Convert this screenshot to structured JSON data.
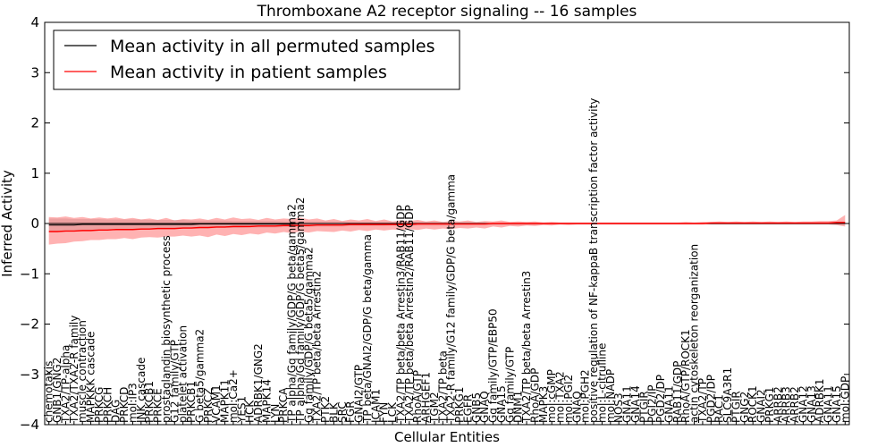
{
  "chart_data": {
    "type": "line",
    "title": "Thromboxane A2 receptor signaling -- 16 samples",
    "xlabel": "Cellular Entities",
    "ylabel": "Inferred Activity",
    "ylim": [
      -4,
      4
    ],
    "yticks": [
      -4,
      -3,
      -2,
      -1,
      0,
      1,
      2,
      3,
      4
    ],
    "ytick_labels": [
      "−4",
      "−3",
      "−2",
      "−1",
      "0",
      "1",
      "2",
      "3",
      "4"
    ],
    "grid": false,
    "legend": {
      "location": "top-left",
      "entries": [
        {
          "label": "Mean activity in all permuted samples",
          "color": "#000000"
        },
        {
          "label": "Mean activity in patient samples",
          "color": "#ff0000"
        }
      ]
    },
    "categories": [
      "chemotaxis",
      "GNB1/GNG2",
      "TXA2/TP-alpha",
      "TXA2/TXA2-R family",
      "muscle contraction",
      "MAPKKK cascade",
      "PRKCG",
      "PRKCH",
      "DAG",
      "PRKCD",
      "mol:IP3",
      "JNK cascade",
      "PRKCB1",
      "PRKCE",
      "prostaglandin biosynthetic process",
      "G12 family/GTP",
      "platelet activation",
      "PRKCB1",
      "G beta5/gamma2",
      "PRKCZ",
      "VCAM1",
      "MAPK11",
      "mol:Ca2+",
      "YES1",
      "HCK",
      "ADRBK1/GNG2",
      "MAPK14",
      "LYN",
      "PRKCA",
      "TP alpha/Gq family/GDP/G beta/gamma2",
      "TP alpha/Gq family/GDP/G beta5/gamma2",
      "Gq family/GDP/G beta5/gamma2",
      "TXA2/TP beta/beta Arrestin2",
      "PTK2",
      "BLK",
      "SRC",
      "FGR",
      "GNAI2/GTP",
      "TP beta/GNAI2/GDP/G beta/gamma",
      "ICAM1",
      "FYN",
      "LCK",
      "TXA2/TP beta/beta Arrestin3/RAB11/GDP",
      "TXA2/TP beta/beta Arrestin2/RAB11/GDP",
      "RhoA/GTP",
      "ARHGEF1",
      "TGM2",
      "TXA2/TP beta",
      "TXA2-R family/G12 family/GDP/G beta/gamma",
      "PRKG1",
      "EGFR",
      "GNB5",
      "GNAQ",
      "Gq family/GTP/EBP50",
      "GNA15",
      "Gq family/GTP",
      "DNM1",
      "TXA2/TP beta/beta Arrestin3",
      "RhoA/GDP",
      "MAPK3",
      "mol:cGMP",
      "mol:TXA2",
      "mol:PGI2",
      "GNAQ",
      "mol:PGH2",
      "positive regulation of NF-kappaB transcription factor activity",
      "mol:L-citrulline",
      "mol:NADP",
      "NOS3",
      "GNA11",
      "GNA14",
      "PTGIR",
      "PGI2/IP",
      "PGD2/DP",
      "GNA11",
      "RAB11/GDP",
      "RhoA/GTP/ROCK1",
      "actin cytoskeleton reorganization",
      "TXA2/TP",
      "PGD2/DP",
      "RAC1",
      "SLC9A3R1",
      "PTGIR",
      "GNG2",
      "ROCK1",
      "GNAI2",
      "PRKG1",
      "ARRB2",
      "ARRB3",
      "ARRB2",
      "GNA12",
      "GNA13",
      "ADRBK1",
      "GNA11",
      "GNA15",
      "mol:GDP"
    ],
    "series": [
      {
        "name": "Mean activity in all permuted samples",
        "color": "#000000",
        "values": [
          -0.03,
          -0.03,
          -0.03,
          -0.03,
          -0.02,
          -0.02,
          -0.02,
          -0.02,
          -0.02,
          -0.02,
          -0.02,
          -0.02,
          -0.02,
          -0.02,
          -0.02,
          -0.02,
          -0.02,
          -0.02,
          -0.01,
          -0.01,
          -0.01,
          -0.01,
          -0.01,
          -0.01,
          -0.01,
          -0.01,
          -0.01,
          -0.01,
          -0.01,
          -0.01,
          0,
          0,
          0,
          0,
          0,
          0,
          0,
          0,
          0,
          0,
          0,
          0,
          0,
          0,
          0,
          0,
          0,
          0,
          0,
          0,
          0,
          0,
          0,
          0,
          0,
          0,
          0,
          0,
          0,
          0,
          0,
          0,
          0,
          0,
          0,
          0,
          0,
          0,
          0,
          0,
          0,
          0,
          0,
          0,
          0,
          0,
          0,
          0,
          0,
          0,
          0,
          0,
          0,
          0,
          0,
          0,
          0,
          0,
          0,
          0,
          0,
          0,
          0,
          0,
          0,
          0
        ],
        "lower": [
          -0.15,
          -0.15,
          -0.14,
          -0.14,
          -0.14,
          -0.13,
          -0.13,
          -0.13,
          -0.12,
          -0.12,
          -0.12,
          -0.12,
          -0.11,
          -0.11,
          -0.11,
          -0.11,
          -0.1,
          -0.1,
          -0.1,
          -0.1,
          -0.09,
          -0.09,
          -0.09,
          -0.09,
          -0.08,
          -0.08,
          -0.08,
          -0.08,
          -0.07,
          -0.07,
          -0.07,
          -0.07,
          -0.06,
          -0.06,
          -0.06,
          -0.06,
          -0.05,
          -0.05,
          -0.05,
          -0.05,
          -0.05,
          -0.04,
          -0.04,
          -0.04,
          -0.04,
          -0.04,
          -0.04,
          -0.04,
          -0.04,
          -0.03,
          -0.03,
          -0.03,
          -0.03,
          -0.03,
          -0.03,
          -0.03,
          -0.03,
          -0.03,
          -0.03,
          -0.02,
          -0.02,
          -0.02,
          -0.02,
          -0.02,
          -0.02,
          -0.02,
          -0.02,
          -0.02,
          -0.02,
          -0.02,
          -0.02,
          -0.02,
          -0.02,
          -0.02,
          -0.02,
          -0.02,
          -0.02,
          -0.02,
          -0.02,
          -0.02,
          -0.02,
          -0.02,
          -0.02,
          -0.02,
          -0.02,
          -0.02,
          -0.02,
          -0.02,
          -0.02,
          -0.02,
          -0.02,
          -0.02,
          -0.02,
          -0.02,
          -0.02,
          -0.02
        ],
        "upper": [
          0.1,
          0.1,
          0.1,
          0.09,
          0.09,
          0.09,
          0.09,
          0.08,
          0.08,
          0.08,
          0.08,
          0.08,
          0.07,
          0.07,
          0.07,
          0.07,
          0.07,
          0.06,
          0.06,
          0.06,
          0.06,
          0.06,
          0.05,
          0.05,
          0.05,
          0.05,
          0.05,
          0.05,
          0.04,
          0.04,
          0.04,
          0.04,
          0.04,
          0.04,
          0.04,
          0.04,
          0.03,
          0.03,
          0.03,
          0.03,
          0.03,
          0.03,
          0.03,
          0.03,
          0.03,
          0.03,
          0.03,
          0.03,
          0.02,
          0.02,
          0.02,
          0.02,
          0.02,
          0.02,
          0.02,
          0.02,
          0.02,
          0.02,
          0.02,
          0.02,
          0.02,
          0.02,
          0.02,
          0.02,
          0.02,
          0.02,
          0.02,
          0.02,
          0.02,
          0.02,
          0.02,
          0.02,
          0.02,
          0.02,
          0.02,
          0.02,
          0.02,
          0.02,
          0.02,
          0.02,
          0.02,
          0.02,
          0.02,
          0.02,
          0.02,
          0.02,
          0.02,
          0.02,
          0.02,
          0.02,
          0.02,
          0.02,
          0.02,
          0.02,
          0.02,
          0.02
        ]
      },
      {
        "name": "Mean activity in patient samples",
        "color": "#ff0000",
        "values": [
          -0.16,
          -0.16,
          -0.15,
          -0.15,
          -0.14,
          -0.14,
          -0.13,
          -0.13,
          -0.12,
          -0.12,
          -0.12,
          -0.11,
          -0.11,
          -0.1,
          -0.1,
          -0.1,
          -0.09,
          -0.09,
          -0.08,
          -0.08,
          -0.07,
          -0.07,
          -0.06,
          -0.06,
          -0.06,
          -0.05,
          -0.05,
          -0.05,
          -0.04,
          -0.04,
          -0.04,
          -0.04,
          -0.03,
          -0.03,
          -0.03,
          -0.03,
          -0.02,
          -0.02,
          -0.02,
          -0.02,
          -0.02,
          -0.02,
          -0.02,
          -0.02,
          -0.01,
          -0.01,
          -0.01,
          -0.01,
          -0.01,
          -0.01,
          -0.01,
          -0.01,
          -0.01,
          0,
          0,
          0,
          0,
          0,
          0,
          0,
          0,
          0,
          0,
          0,
          0,
          0,
          0,
          0,
          0,
          0,
          0,
          0,
          0,
          0,
          0,
          0,
          0,
          0,
          0,
          0.01,
          0.01,
          0.01,
          0.01,
          0.01,
          0.01,
          0.01,
          0.01,
          0.01,
          0.01,
          0.01,
          0.01,
          0.01,
          0.01,
          0.01,
          0.02,
          0.02
        ],
        "lower": [
          -0.42,
          -0.4,
          -0.39,
          -0.36,
          -0.35,
          -0.33,
          -0.33,
          -0.31,
          -0.31,
          -0.29,
          -0.31,
          -0.28,
          -0.27,
          -0.28,
          -0.26,
          -0.26,
          -0.24,
          -0.26,
          -0.24,
          -0.27,
          -0.22,
          -0.25,
          -0.21,
          -0.23,
          -0.2,
          -0.22,
          -0.18,
          -0.2,
          -0.17,
          -0.19,
          -0.16,
          -0.18,
          -0.15,
          -0.16,
          -0.17,
          -0.14,
          -0.16,
          -0.13,
          -0.15,
          -0.12,
          -0.14,
          -0.12,
          -0.13,
          -0.11,
          -0.13,
          -0.1,
          -0.12,
          -0.1,
          -0.11,
          -0.09,
          -0.1,
          -0.08,
          -0.1,
          -0.06,
          -0.08,
          -0.05,
          -0.06,
          -0.04,
          -0.05,
          -0.03,
          -0.04,
          -0.02,
          -0.03,
          -0.02,
          -0.02,
          -0.02,
          -0.02,
          -0.02,
          -0.02,
          -0.02,
          -0.02,
          -0.02,
          -0.02,
          -0.02,
          -0.02,
          -0.02,
          -0.02,
          -0.02,
          -0.02,
          -0.02,
          -0.02,
          -0.02,
          -0.02,
          -0.02,
          -0.02,
          -0.02,
          -0.02,
          -0.02,
          -0.02,
          -0.02,
          -0.02,
          -0.02,
          -0.02,
          -0.02,
          -0.03,
          -0.06
        ],
        "upper": [
          0.13,
          0.12,
          0.14,
          0.11,
          0.13,
          0.1,
          0.12,
          0.1,
          0.12,
          0.09,
          0.11,
          0.08,
          0.1,
          0.07,
          0.11,
          0.06,
          0.09,
          0.08,
          0.1,
          0.07,
          0.11,
          0.08,
          0.12,
          0.09,
          0.1,
          0.07,
          0.11,
          0.08,
          0.1,
          0.09,
          0.12,
          0.08,
          0.1,
          0.06,
          0.09,
          0.05,
          0.08,
          0.06,
          0.09,
          0.05,
          0.08,
          0.04,
          0.06,
          0.05,
          0.07,
          0.04,
          0.06,
          0.03,
          0.05,
          0.04,
          0.06,
          0.03,
          0.05,
          0.04,
          0.06,
          0.03,
          0.04,
          0.03,
          0.04,
          0.02,
          0.03,
          0.02,
          0.02,
          0.02,
          0.02,
          0.02,
          0.02,
          0.02,
          0.02,
          0.02,
          0.02,
          0.02,
          0.02,
          0.02,
          0.02,
          0.02,
          0.03,
          0.02,
          0.03,
          0.03,
          0.04,
          0.03,
          0.04,
          0.03,
          0.04,
          0.03,
          0.04,
          0.03,
          0.04,
          0.03,
          0.04,
          0.04,
          0.05,
          0.05,
          0.06,
          0.17
        ]
      }
    ]
  }
}
